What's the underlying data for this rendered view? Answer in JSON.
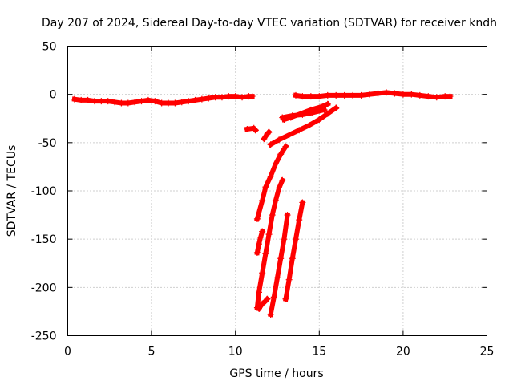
{
  "chart_data": {
    "type": "scatter",
    "title": "Day 207 of 2024, Sidereal Day-to-day VTEC variation (SDTVAR) for receiver kndh",
    "xlabel": "GPS time / hours",
    "ylabel": "SDTVAR / TECUs",
    "xlim": [
      0,
      25
    ],
    "ylim": [
      -250,
      50
    ],
    "xticks": [
      0,
      5,
      10,
      15,
      20,
      25
    ],
    "yticks": [
      50,
      0,
      -50,
      -100,
      -150,
      -200,
      -250
    ],
    "grid": true,
    "legend": "none",
    "marker": "plus",
    "color": "#ff0000",
    "series": [
      {
        "x": [
          0.4,
          0.8,
          1.2,
          1.6,
          2.0,
          2.4,
          2.8,
          3.2,
          3.6,
          4.0,
          4.4,
          4.8,
          5.2,
          5.6,
          6.0,
          6.4,
          6.8,
          7.2,
          7.6,
          8.0,
          8.4,
          8.8,
          9.2,
          9.6,
          10.0,
          10.4,
          10.8,
          11.0
        ],
        "y": [
          -5,
          -6,
          -6,
          -7,
          -7,
          -7,
          -8,
          -9,
          -9,
          -8,
          -7,
          -6,
          -7,
          -9,
          -9,
          -9,
          -8,
          -7,
          -6,
          -5,
          -4,
          -3,
          -3,
          -2,
          -2,
          -3,
          -2,
          -2
        ]
      },
      {
        "x": [
          13.6,
          14.0,
          14.5,
          15.0,
          15.5,
          16.0,
          16.5,
          17.0,
          17.5,
          18.0,
          18.5,
          19.0,
          19.5,
          20.0,
          20.5,
          21.0,
          21.5,
          22.0,
          22.5,
          22.8
        ],
        "y": [
          -1,
          -2,
          -2,
          -2,
          -1,
          -1,
          -1,
          -1,
          -1,
          0,
          1,
          2,
          1,
          0,
          0,
          -1,
          -2,
          -3,
          -2,
          -2
        ]
      },
      {
        "x": [
          10.7,
          11.1,
          11.2
        ],
        "y": [
          -36,
          -35,
          -37
        ]
      },
      {
        "x": [
          11.7,
          11.9,
          12.0
        ],
        "y": [
          -46,
          -41,
          -39
        ]
      },
      {
        "x": [
          12.1,
          12.6,
          13.2,
          13.8,
          14.4,
          15.0,
          15.5,
          16.0
        ],
        "y": [
          -52,
          -47,
          -42,
          -37,
          -32,
          -26,
          -20,
          -14
        ]
      },
      {
        "x": [
          12.8,
          13.4,
          14.0,
          14.6,
          15.3
        ],
        "y": [
          -24,
          -22,
          -21,
          -19,
          -16
        ]
      },
      {
        "x": [
          12.9,
          13.3,
          13.9,
          14.5,
          15.1,
          15.5
        ],
        "y": [
          -26,
          -24,
          -20,
          -16,
          -13,
          -10
        ]
      },
      {
        "x": [
          11.3,
          11.6,
          11.8,
          12.1,
          12.4,
          12.7,
          13.0
        ],
        "y": [
          -129,
          -110,
          -96,
          -85,
          -72,
          -62,
          -54
        ]
      },
      {
        "x": [
          11.3,
          11.4,
          11.5,
          11.6
        ],
        "y": [
          -164,
          -155,
          -148,
          -142
        ]
      },
      {
        "x": [
          11.3,
          11.4,
          11.6,
          11.8,
          12.0,
          12.2,
          12.4,
          12.6,
          12.8
        ],
        "y": [
          -221,
          -205,
          -185,
          -165,
          -145,
          -125,
          -110,
          -97,
          -89
        ]
      },
      {
        "x": [
          11.4,
          11.6,
          11.8,
          11.9
        ],
        "y": [
          -222,
          -217,
          -214,
          -212
        ]
      },
      {
        "x": [
          12.1,
          12.3,
          12.5,
          12.7,
          12.9,
          13.1
        ],
        "y": [
          -228,
          -210,
          -190,
          -170,
          -150,
          -125
        ]
      },
      {
        "x": [
          13.0,
          13.2,
          13.4,
          13.6,
          13.8,
          14.0
        ],
        "y": [
          -212,
          -192,
          -170,
          -150,
          -130,
          -112
        ]
      }
    ]
  }
}
